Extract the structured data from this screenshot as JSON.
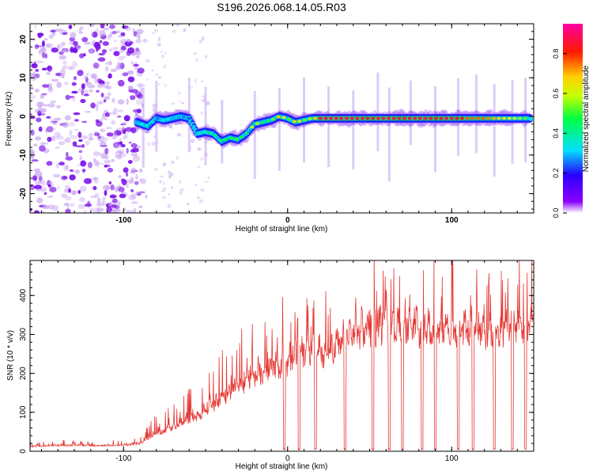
{
  "title": "S196.2026.068.14.05.R03",
  "colors": {
    "background": "#ffffff",
    "axis": "#000000",
    "snr_line": "#e53935"
  },
  "chart_data": [
    {
      "type": "heatmap",
      "title": "S196.2026.068.14.05.R03",
      "xlabel": "Height of straight line (km)",
      "ylabel": "Frequency (Hz)",
      "xlim": [
        -157,
        150
      ],
      "ylim": [
        -25,
        24
      ],
      "x_ticks": [
        -100,
        0,
        100
      ],
      "y_ticks": [
        -20,
        -10,
        0,
        10,
        20
      ],
      "x_tick_labels": [
        "-100",
        "0",
        "100"
      ],
      "y_tick_labels": [
        "-20",
        "-10",
        "0",
        "10",
        "20"
      ],
      "colorbar": {
        "label": "Normalized spectral amplitude",
        "range": [
          0,
          0.95
        ],
        "ticks": [
          0.0,
          0.2,
          0.4,
          0.6,
          0.8
        ],
        "tick_labels": [
          "0.0",
          "0.2",
          "0.4",
          "0.6",
          "0.8"
        ],
        "colormap": "rainbow (violet-blue-cyan-green-yellow-red-magenta)"
      },
      "noise_region": {
        "x_range": [
          -157,
          -88
        ],
        "amplitude": 0.15
      },
      "ridge": {
        "x": [
          -92,
          -85,
          -80,
          -75,
          -70,
          -65,
          -60,
          -55,
          -50,
          -45,
          -40,
          -35,
          -30,
          -25,
          -20,
          -15,
          -10,
          -5,
          0,
          5,
          10,
          15,
          20,
          30,
          40,
          50,
          60,
          70,
          80,
          90,
          100,
          110,
          120,
          130,
          140,
          148
        ],
        "freq": [
          -1.5,
          -2.5,
          -0.5,
          -1.0,
          -0.5,
          0.0,
          -0.5,
          -4.5,
          -4.0,
          -4.5,
          -6.5,
          -5.5,
          -6.0,
          -4.5,
          -2.0,
          -1.5,
          -1.0,
          0.0,
          -0.5,
          -1.5,
          -1.0,
          -0.5,
          -0.5,
          -0.5,
          -0.5,
          -0.5,
          -0.5,
          -0.5,
          -0.5,
          -0.5,
          -0.5,
          -0.5,
          -0.5,
          -0.5,
          -0.5,
          -0.5
        ],
        "amplitude": [
          0.3,
          0.4,
          0.25,
          0.35,
          0.3,
          0.3,
          0.25,
          0.35,
          0.4,
          0.45,
          0.5,
          0.5,
          0.55,
          0.45,
          0.7,
          0.45,
          0.5,
          0.75,
          0.5,
          0.75,
          0.55,
          0.6,
          0.95,
          0.95,
          0.95,
          0.9,
          0.95,
          0.9,
          0.95,
          0.9,
          0.95,
          0.8,
          0.8,
          0.7,
          0.6,
          0.5
        ]
      }
    },
    {
      "type": "line",
      "title": "",
      "xlabel": "Height of straight line (km)",
      "ylabel": "SNR (10 * v/v)",
      "xlim": [
        -157,
        150
      ],
      "ylim": [
        0,
        490
      ],
      "x_ticks": [
        -100,
        0,
        100
      ],
      "y_ticks": [
        0,
        100,
        200,
        300,
        400
      ],
      "x_tick_labels": [
        "-100",
        "0",
        "100"
      ],
      "y_tick_labels": [
        "0",
        "100",
        "200",
        "300",
        "400"
      ],
      "series": [
        {
          "name": "SNR",
          "x": [
            -157,
            -140,
            -120,
            -100,
            -90,
            -80,
            -70,
            -60,
            -50,
            -40,
            -30,
            -20,
            -10,
            0,
            10,
            20,
            30,
            40,
            50,
            60,
            70,
            80,
            90,
            100,
            110,
            120,
            130,
            140,
            150
          ],
          "base": [
            12,
            15,
            15,
            15,
            20,
            45,
            60,
            75,
            100,
            130,
            160,
            185,
            205,
            215,
            245,
            240,
            255,
            295,
            300,
            305,
            310,
            300,
            305,
            290,
            300,
            295,
            300,
            305,
            320
          ],
          "peaks": [
            25,
            30,
            28,
            30,
            40,
            100,
            130,
            160,
            200,
            260,
            300,
            330,
            340,
            385,
            360,
            370,
            410,
            440,
            480,
            475,
            470,
            475,
            485,
            470,
            460,
            450,
            455,
            460,
            460
          ],
          "dropouts": [
            -2,
            7,
            17,
            35,
            52,
            62,
            70,
            82,
            90,
            104,
            113,
            126,
            137,
            145
          ]
        }
      ]
    }
  ]
}
